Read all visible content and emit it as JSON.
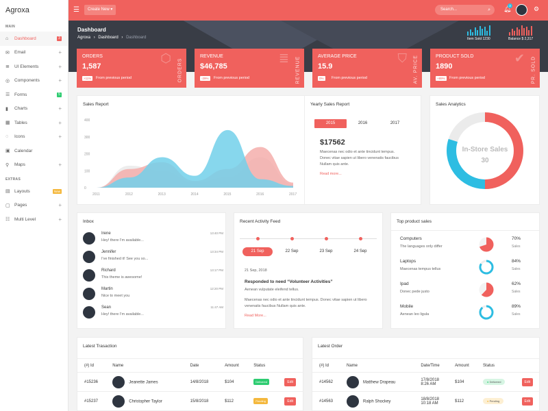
{
  "app": {
    "logo": "Agroxa"
  },
  "sidebar": {
    "main_label": "MAIN",
    "extras_label": "EXTRAS",
    "items": [
      {
        "label": "Dashboard",
        "icon": "home-icon",
        "badge": "3",
        "badge_color": "#f0615d"
      },
      {
        "label": "Email",
        "icon": "mail-icon"
      },
      {
        "label": "UI Elements",
        "icon": "layers-icon"
      },
      {
        "label": "Components",
        "icon": "components-icon"
      },
      {
        "label": "Forms",
        "icon": "forms-icon",
        "badge": "5",
        "badge_color": "#2ecc71"
      },
      {
        "label": "Charts",
        "icon": "chart-icon"
      },
      {
        "label": "Tables",
        "icon": "table-icon"
      },
      {
        "label": "Icons",
        "icon": "icons-icon"
      },
      {
        "label": "Calendar",
        "icon": "calendar-icon"
      },
      {
        "label": "Maps",
        "icon": "map-pin-icon"
      }
    ],
    "extras": [
      {
        "label": "Layouts",
        "icon": "layout-icon",
        "badge": "New"
      },
      {
        "label": "Pages",
        "icon": "pages-icon"
      },
      {
        "label": "Multi Level",
        "icon": "multilevel-icon"
      }
    ]
  },
  "topbar": {
    "create_label": "Create New ▾",
    "search_placeholder": "Search...",
    "notif_count": "3"
  },
  "hero": {
    "title": "Dashboard",
    "breadcrumb": [
      "Agroxa",
      "Dashboard",
      "Dashboard"
    ],
    "item_sold": "Item Sold 1230",
    "balance": "Balance $ 2,317"
  },
  "stats": [
    {
      "label": "ORDERS",
      "value": "1,587",
      "pct": "+11%",
      "prev": "From previous period",
      "vertical": "ORDERS",
      "icon": "cube-icon"
    },
    {
      "label": "REVENUE",
      "value": "$46,785",
      "pct": "-29%",
      "prev": "From previous period",
      "vertical": "REVENUE",
      "icon": "layers-icon"
    },
    {
      "label": "AVERAGE PRICE",
      "value": "15.9",
      "pct": "0%",
      "prev": "From previous period",
      "vertical": "AV. PRICE",
      "icon": "tag-icon"
    },
    {
      "label": "PRODUCT SOLD",
      "value": "1890",
      "pct": "+89%",
      "prev": "From previous period",
      "vertical": "PR. SOLD",
      "icon": "briefcase-check-icon"
    }
  ],
  "sales_report": {
    "title": "Sales Report",
    "chart_data": {
      "type": "area",
      "x": [
        "2011",
        "2012",
        "2013",
        "2014",
        "2015",
        "2016",
        "2017"
      ],
      "ylim": [
        0,
        400
      ],
      "yticks": [
        "0",
        "100",
        "200",
        "300",
        "400"
      ],
      "series": [
        {
          "values": [
            0,
            110,
            150,
            40,
            110,
            240,
            30
          ],
          "color": "#f4a9a6"
        },
        {
          "values": [
            0,
            60,
            180,
            70,
            340,
            50,
            10
          ],
          "color": "#72d0ea"
        },
        {
          "values": [
            0,
            130,
            100,
            30,
            60,
            180,
            20
          ],
          "color": "#e8e8e8"
        }
      ]
    }
  },
  "yearly": {
    "title": "Yearly Sales Report",
    "tabs": [
      "2015",
      "2016",
      "2017"
    ],
    "value": "$17562",
    "desc": "Maecenas nec odio et ante tincidunt tempus. Donec vitae sapien ut libero venenatis faucibus Nullam quis ante.",
    "more": "Read more..."
  },
  "analytics": {
    "title": "Sales Analytics",
    "center_label": "In-Store Sales",
    "center_value": "30",
    "chart_data": {
      "type": "pie",
      "segments": [
        {
          "value": 50,
          "color": "#f0615d"
        },
        {
          "value": 30,
          "color": "#2dbde2"
        },
        {
          "value": 20,
          "color": "#ebebeb"
        }
      ]
    }
  },
  "inbox": {
    "title": "Inbox",
    "items": [
      {
        "name": "Irene",
        "msg": "Hey! there I'm available...",
        "time": "13:40 PM"
      },
      {
        "name": "Jennifer",
        "msg": "I've finished it! See you so...",
        "time": "13:34 PM"
      },
      {
        "name": "Richard",
        "msg": "This theme is awesome!",
        "time": "13:17 PM"
      },
      {
        "name": "Martin",
        "msg": "Nice to meet you",
        "time": "12:20 PM"
      },
      {
        "name": "Sean",
        "msg": "Hey! there I'm available...",
        "time": "11:47 AM"
      }
    ]
  },
  "feed": {
    "title": "Recent Activity Feed",
    "dates": [
      "21 Sep",
      "22 Sep",
      "23 Sep",
      "24 Sep"
    ],
    "date": "21 Sep, 2018",
    "heading": "Responded to need “Volunteer Activities”",
    "sub": "Aenean vulputate eleifend tellus.",
    "body": "Maecenas nec odio et ante tincidunt tempus. Donec vitae sapien ut libero venenatis faucibus Nullam quis ante.",
    "more": "Read More..."
  },
  "top_products": {
    "title": "Top product sales",
    "items": [
      {
        "name": "Computers",
        "desc": "The languages only differ",
        "pct": "70%",
        "unit": "Sales",
        "value": 70,
        "color": "#f0615d"
      },
      {
        "name": "Laptops",
        "desc": "Maecenas tempus tellus",
        "pct": "84%",
        "unit": "Sales",
        "value": 84,
        "color": "#2dbde2"
      },
      {
        "name": "Ipad",
        "desc": "Donec pede justo",
        "pct": "62%",
        "unit": "Sales",
        "value": 62,
        "color": "#f0615d"
      },
      {
        "name": "Mobile",
        "desc": "Aenean leo ligula",
        "pct": "89%",
        "unit": "Sales",
        "value": 89,
        "color": "#2dbde2"
      }
    ]
  },
  "transactions": {
    "title": "Latest Trasaction",
    "headers": [
      "(#) Id",
      "Name",
      "Date",
      "Amount",
      "Status",
      ""
    ],
    "rows": [
      {
        "id": "#15236",
        "name": "Jeanette James",
        "date": "14/8/2018",
        "amount": "$104",
        "status": "Delivered",
        "status_color": "#2ecc71",
        "action": "Edit"
      },
      {
        "id": "#15237",
        "name": "Christopher Taylor",
        "date": "15/8/2018",
        "amount": "$112",
        "status": "Pending",
        "status_color": "#f4b83d",
        "action": "Edit"
      }
    ]
  },
  "orders": {
    "title": "Latest Order",
    "headers": [
      "(#) Id",
      "Name",
      "Date/Time",
      "Amount",
      "Status",
      ""
    ],
    "rows": [
      {
        "id": "#14562",
        "name": "Matthew Drapeau",
        "date": "17/8/2018",
        "time": "8:26 AM",
        "amount": "$104",
        "status": "Delivered",
        "status_bg": "#d6f5e3",
        "status_dot": "#2ecc71",
        "action": "Edit"
      },
      {
        "id": "#14563",
        "name": "Ralph Shockey",
        "date": "18/8/2018",
        "time": "10:18 AM",
        "amount": "$112",
        "status": "Pending",
        "status_bg": "#fdefd2",
        "status_dot": "#f4b83d",
        "action": "Edit"
      }
    ]
  }
}
